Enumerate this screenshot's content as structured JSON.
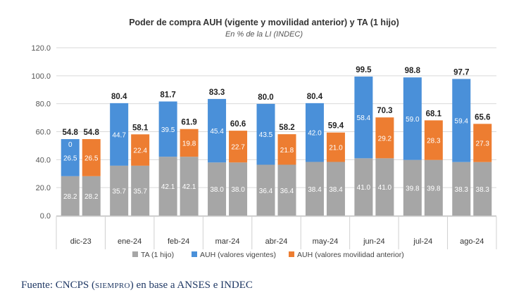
{
  "chart_data": {
    "type": "bar",
    "title": "Poder de compra AUH (vigente y movilidad anterior) y TA (1 hijo)",
    "subtitle": "En % de la LI (INDEC)",
    "categories": [
      "dic-23",
      "ene-24",
      "feb-24",
      "mar-24",
      "abr-24",
      "may-24",
      "jun-24",
      "jul-24",
      "ago-24"
    ],
    "ylim": [
      0,
      120
    ],
    "yticks": [
      "0.0",
      "20.0",
      "40.0",
      "60.0",
      "80.0",
      "100.0",
      "120.0"
    ],
    "grid": true,
    "legend_position": "bottom",
    "stacked": true,
    "colors": {
      "ta": "#a6a6a6",
      "vigente": "#4a90d9",
      "anterior": "#ed7d31"
    },
    "series": [
      {
        "name": "TA (1 hijo)",
        "values": [
          28.2,
          35.7,
          42.1,
          38.0,
          36.4,
          38.4,
          41.0,
          39.8,
          38.3
        ]
      },
      {
        "name": "AUH (valores vigentes)",
        "values": [
          26.5,
          44.7,
          39.5,
          45.4,
          43.5,
          42.0,
          58.4,
          59.0,
          59.4
        ]
      },
      {
        "name": "AUH (valores movilidad anterior)",
        "values": [
          26.5,
          22.4,
          19.8,
          22.7,
          21.8,
          21.0,
          29.2,
          28.3,
          27.3
        ]
      }
    ],
    "totals_vigente": [
      "54.8",
      "80.4",
      "81.7",
      "83.3",
      "80.0",
      "80.4",
      "99.5",
      "98.8",
      "97.7"
    ],
    "totals_anterior": [
      "54.8",
      "58.1",
      "61.9",
      "60.6",
      "58.2",
      "59.4",
      "70.3",
      "68.1",
      "65.6"
    ],
    "ta_labels": [
      "28.2",
      "35.7",
      "42.1",
      "38.0",
      "36.4",
      "38.4",
      "41.0",
      "39.8",
      "38.3"
    ],
    "vigente_labels": [
      "26.5",
      "44.7",
      "39.5",
      "45.4",
      "43.5",
      "42.0",
      "58.4",
      "59.0",
      "59.4"
    ],
    "anterior_labels": [
      "26.5",
      "22.4",
      "19.8",
      "22.7",
      "21.8",
      "21.0",
      "29.2",
      "28.3",
      "27.3"
    ],
    "annotation_dic23": "0"
  },
  "source": {
    "prefix": "Fuente: CNCPS (",
    "org": "SIEMPRO",
    "suffix": ") en base a ANSES e INDEC"
  }
}
